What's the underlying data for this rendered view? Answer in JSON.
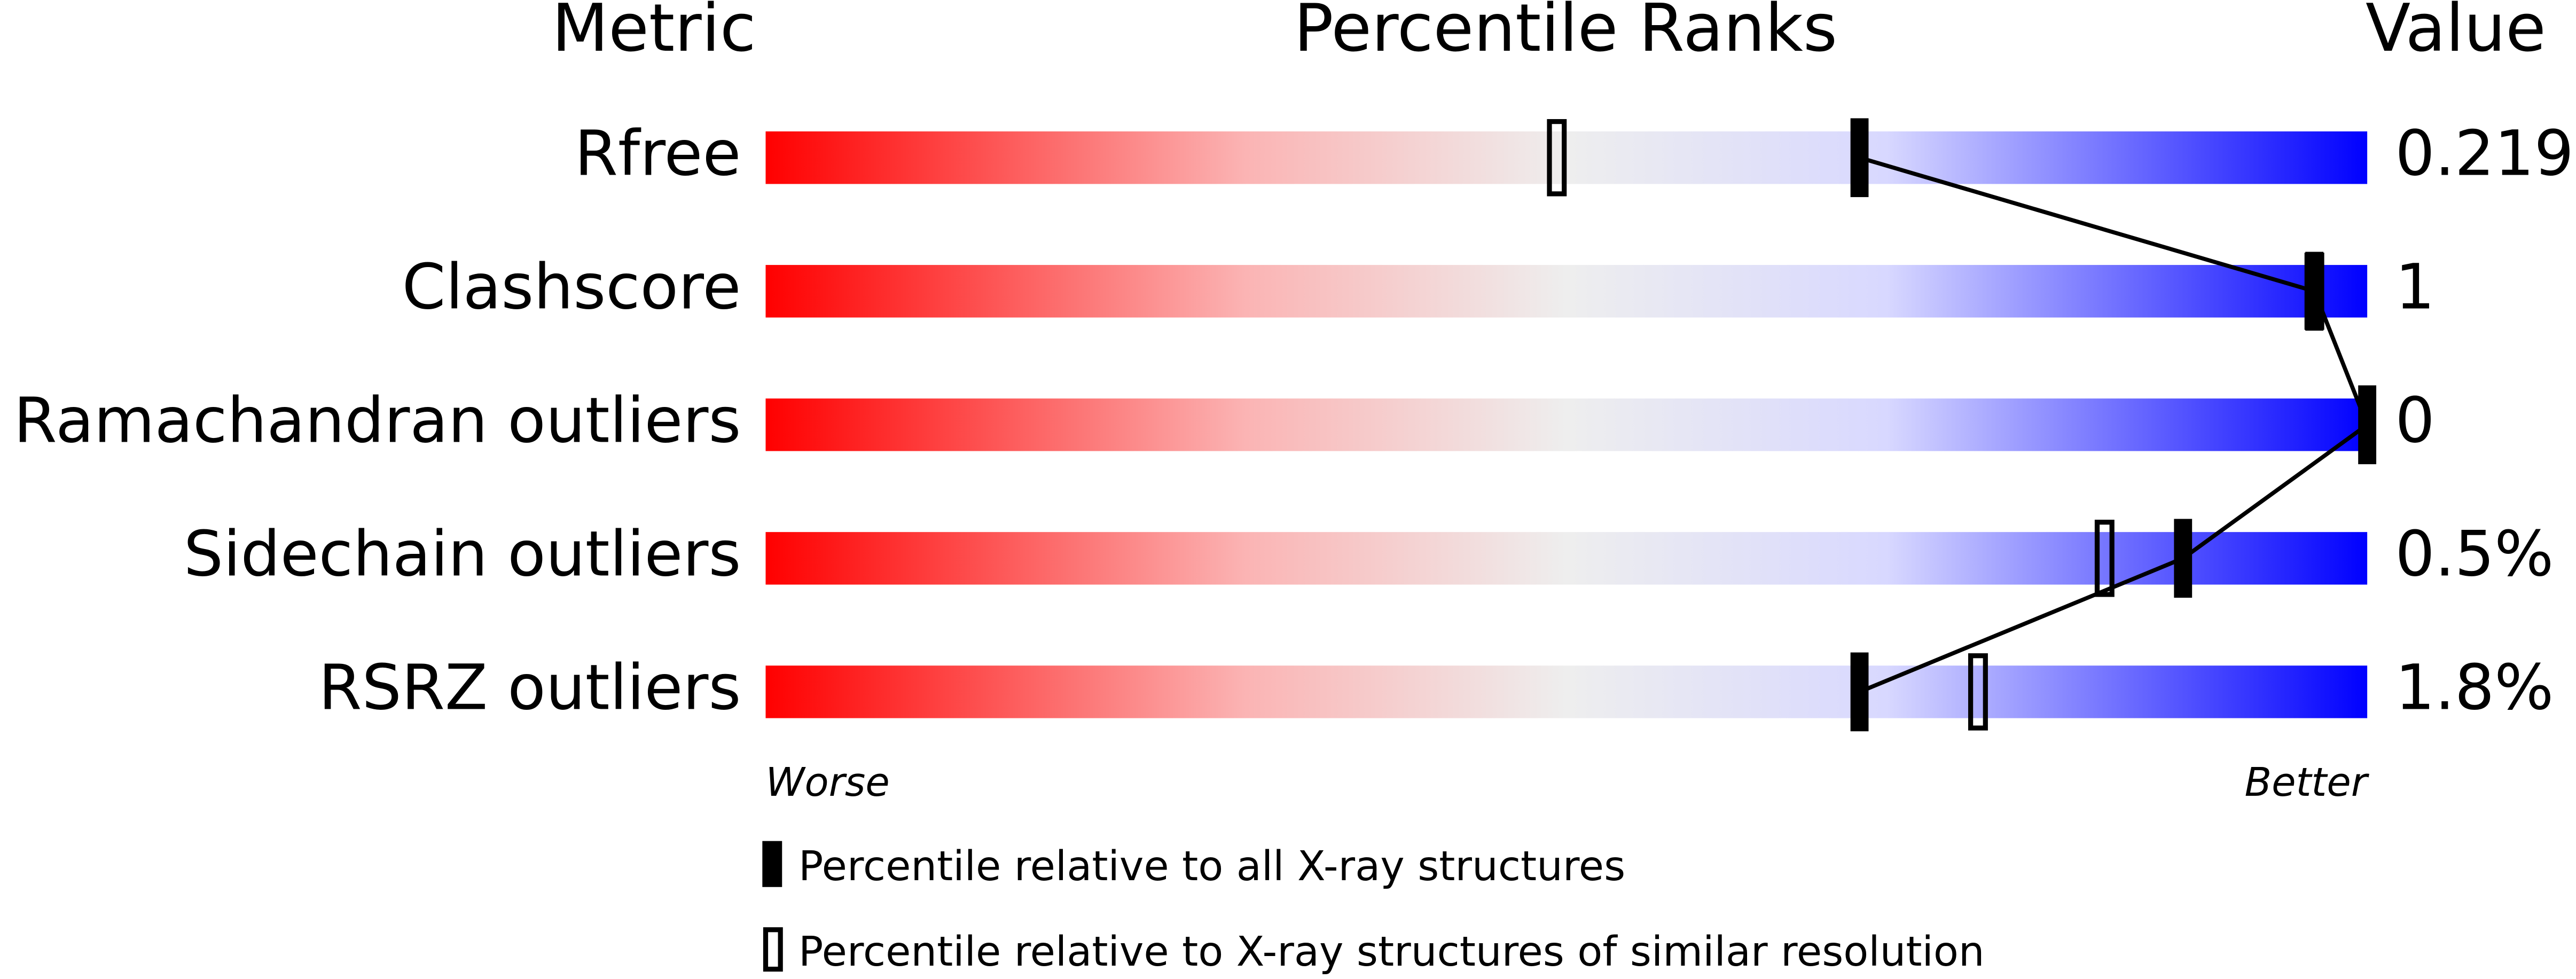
{
  "chart_data": {
    "type": "percentile",
    "headers": {
      "metric": "Metric",
      "ranks": "Percentile Ranks",
      "value": "Value"
    },
    "metrics": [
      "Rfree",
      "Clashscore",
      "Ramachandran outliers",
      "Sidechain outliers",
      "RSRZ outliers"
    ],
    "value_labels": [
      "0.219",
      "1",
      "0",
      "0.5%",
      "1.8%"
    ],
    "series": [
      {
        "name": "Percentile relative to all X-ray structures",
        "color": "#000000",
        "values": [
          68.3,
          96.7,
          100,
          88.5,
          68.3
        ]
      },
      {
        "name": "Percentile relative to X-ray structures of similar resolution",
        "color": "#000000",
        "values": [
          49.4,
          96.7,
          null,
          83.6,
          75.7
        ]
      }
    ],
    "xlim": [
      0,
      100
    ],
    "axis_labels": {
      "low": "Worse",
      "high": "Better"
    }
  }
}
